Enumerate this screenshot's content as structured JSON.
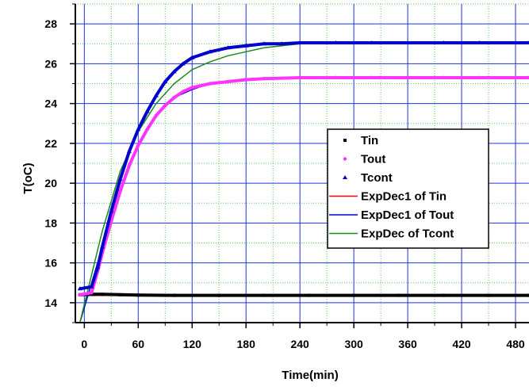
{
  "chart_data": {
    "type": "scatter",
    "xlabel": "Time(min)",
    "ylabel": "T(oC)",
    "xlim": [
      -10,
      495
    ],
    "ylim": [
      13,
      29
    ],
    "x_ticks": [
      0,
      60,
      120,
      180,
      240,
      300,
      360,
      420,
      480
    ],
    "y_ticks": [
      14,
      16,
      18,
      20,
      22,
      24,
      26,
      28
    ],
    "grid": true,
    "legend_position": "right-middle",
    "series": [
      {
        "name": "Tin",
        "kind": "markers",
        "marker": "square",
        "color": "#000000",
        "x": [
          -5,
          10,
          20,
          40,
          60,
          100,
          150,
          200,
          250,
          300,
          350,
          400,
          450,
          495
        ],
        "y": [
          14.4,
          14.42,
          14.42,
          14.4,
          14.38,
          14.37,
          14.37,
          14.37,
          14.37,
          14.37,
          14.37,
          14.37,
          14.37,
          14.37
        ]
      },
      {
        "name": "Tout",
        "kind": "markers",
        "marker": "circle",
        "color": "#ff33ff",
        "x": [
          -5,
          8,
          15,
          20,
          30,
          40,
          50,
          60,
          70,
          80,
          90,
          100,
          110,
          120,
          140,
          160,
          180,
          200,
          240,
          280,
          320,
          360,
          400,
          440,
          495
        ],
        "y": [
          14.4,
          14.5,
          15.6,
          16.5,
          18.1,
          19.6,
          20.9,
          21.9,
          22.7,
          23.4,
          23.9,
          24.3,
          24.6,
          24.8,
          25.0,
          25.1,
          25.2,
          25.25,
          25.3,
          25.3,
          25.3,
          25.3,
          25.3,
          25.3,
          25.3
        ]
      },
      {
        "name": "Tcont",
        "kind": "markers",
        "marker": "triangle",
        "color": "#0000cc",
        "x": [
          -5,
          8,
          15,
          20,
          30,
          40,
          50,
          60,
          70,
          80,
          90,
          100,
          110,
          120,
          140,
          160,
          180,
          200,
          220,
          240,
          280,
          320,
          360,
          400,
          440,
          495
        ],
        "y": [
          14.7,
          14.8,
          15.8,
          16.8,
          18.6,
          20.2,
          21.6,
          22.7,
          23.6,
          24.4,
          25.1,
          25.6,
          26.0,
          26.3,
          26.6,
          26.8,
          26.9,
          27.0,
          27.0,
          27.05,
          27.05,
          27.05,
          27.05,
          27.05,
          27.05,
          27.05
        ]
      },
      {
        "name": "ExpDec1 of Tin",
        "kind": "line",
        "color": "#ff0000",
        "x": [
          -5,
          495
        ],
        "y": [
          14.37,
          14.37
        ]
      },
      {
        "name": "ExpDec1 of Tout",
        "kind": "line",
        "color": "#0000cc",
        "x": [
          -5,
          20,
          40,
          60,
          80,
          100,
          120,
          140,
          160,
          180,
          200,
          240,
          300,
          360,
          420,
          495
        ],
        "y": [
          13.0,
          16.8,
          19.6,
          21.9,
          23.4,
          24.3,
          24.7,
          25.0,
          25.1,
          25.2,
          25.25,
          25.3,
          25.3,
          25.3,
          25.3,
          25.3
        ]
      },
      {
        "name": "ExpDec of Tcont",
        "kind": "line",
        "color": "#1a8a1a",
        "x": [
          -5,
          20,
          40,
          60,
          80,
          100,
          120,
          140,
          160,
          180,
          200,
          240,
          300,
          360,
          420,
          495
        ],
        "y": [
          13.0,
          17.6,
          20.6,
          22.6,
          24.0,
          25.0,
          25.7,
          26.1,
          26.4,
          26.6,
          26.8,
          27.0,
          27.05,
          27.05,
          27.05,
          27.05
        ]
      }
    ]
  }
}
